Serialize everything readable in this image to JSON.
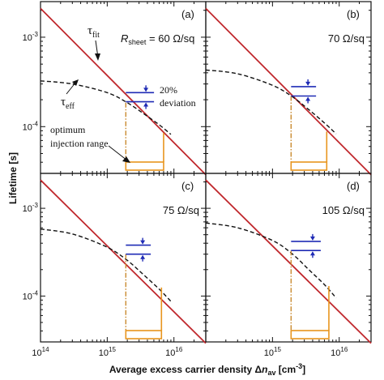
{
  "figure": {
    "xlabel_prefix": "Average excess carrier density ",
    "xlabel_delta": "Δ",
    "xlabel_n": "n",
    "xlabel_sub": "av",
    "xlabel_unit": " [cm",
    "xlabel_unit_exp": "-3",
    "xlabel_unit_close": "]",
    "ylabel": "Lifetime [s]"
  },
  "annotations": {
    "tau": "τ",
    "fit_sub": "fit",
    "eff_sub": "eff",
    "rsheet_r": "R",
    "rsheet_sub": "sheet",
    "deviation_line1": "20%",
    "deviation_line2": "deviation",
    "optimum_line1": "optimum",
    "optimum_line2": "injection range"
  },
  "colors": {
    "fit_line": "#c0282d",
    "eff_curve": "#111111",
    "marker_blue": "#1f2bb5",
    "range_orange": "#e8951e",
    "dashdot": "#c98a2e"
  },
  "chart_data": [
    {
      "type": "line",
      "panel_label": "(a)",
      "sheet_label": "= 60 Ω/sq",
      "x_scale": "log",
      "y_scale": "log",
      "xlim": [
        100000000000000.0,
        3e+16
      ],
      "ylim": [
        3e-05,
        0.0025
      ],
      "xticks": [
        "10^14",
        "10^15",
        "10^16"
      ],
      "yticks": [
        "10^-4",
        "10^-3"
      ],
      "series": [
        {
          "style": "solid-red",
          "x": [
            100000000000000.0,
            3e+16
          ],
          "y": [
            0.0021,
            2.9e-05
          ]
        },
        {
          "style": "dashed-black",
          "x": [
            100000000000000.0,
            300000000000000.0,
            1000000000000000.0,
            2000000000000000.0,
            3500000000000000.0,
            6000000000000000.0,
            9000000000000000.0
          ],
          "y": [
            0.000325,
            0.0003,
            0.00024,
            0.000185,
            0.00014,
            0.000105,
            8.2e-05
          ]
        }
      ],
      "blue_levels": [
        0.00024,
        0.00019
      ],
      "arrow_x": 3800000000000000.0,
      "range_x": [
        1900000000000000.0,
        7000000000000000.0
      ],
      "dashdot_top": 0.000185,
      "orange_right_top": 8.5e-05
    },
    {
      "type": "line",
      "panel_label": "(b)",
      "sheet_label": "70 Ω/sq",
      "x_scale": "log",
      "y_scale": "log",
      "xlim": [
        100000000000000.0,
        3e+16
      ],
      "ylim": [
        3e-05,
        0.0025
      ],
      "xticks": [
        "10^14",
        "10^15",
        "10^16"
      ],
      "yticks": [
        "10^-4",
        "10^-3"
      ],
      "series": [
        {
          "style": "solid-red",
          "x": [
            100000000000000.0,
            3e+16
          ],
          "y": [
            0.0021,
            2.9e-05
          ]
        },
        {
          "style": "dashed-black",
          "x": [
            100000000000000.0,
            300000000000000.0,
            1000000000000000.0,
            2000000000000000.0,
            3500000000000000.0,
            6000000000000000.0,
            9000000000000000.0
          ],
          "y": [
            0.00043,
            0.00039,
            0.00029,
            0.000215,
            0.000155,
            0.00011,
            8.3e-05
          ]
        }
      ],
      "blue_levels": [
        0.00028,
        0.00022
      ],
      "arrow_x": 3400000000000000.0,
      "range_x": [
        1900000000000000.0,
        6500000000000000.0
      ],
      "dashdot_top": 0.00022,
      "orange_right_top": 8.8e-05
    },
    {
      "type": "line",
      "panel_label": "(c)",
      "sheet_label": "75 Ω/sq",
      "x_scale": "log",
      "y_scale": "log",
      "xlim": [
        100000000000000.0,
        3e+16
      ],
      "ylim": [
        3e-05,
        0.0025
      ],
      "xticks": [
        "10^14",
        "10^15",
        "10^16"
      ],
      "yticks": [
        "10^-4",
        "10^-3"
      ],
      "series": [
        {
          "style": "solid-red",
          "x": [
            100000000000000.0,
            3e+16
          ],
          "y": [
            0.0021,
            2.9e-05
          ]
        },
        {
          "style": "dashed-black",
          "x": [
            100000000000000.0,
            300000000000000.0,
            1000000000000000.0,
            2000000000000000.0,
            3500000000000000.0,
            6000000000000000.0,
            9000000000000000.0
          ],
          "y": [
            0.00058,
            0.00051,
            0.00036,
            0.000255,
            0.000175,
            0.00012,
            8.7e-05
          ]
        }
      ],
      "blue_levels": [
        0.00038,
        0.0003
      ],
      "arrow_x": 3400000000000000.0,
      "range_x": [
        1900000000000000.0,
        6500000000000000.0
      ],
      "dashdot_top": 0.0003,
      "orange_right_top": 0.000125
    },
    {
      "type": "line",
      "panel_label": "(d)",
      "sheet_label": "105 Ω/sq",
      "x_scale": "log",
      "y_scale": "log",
      "xlim": [
        100000000000000.0,
        3e+16
      ],
      "ylim": [
        3e-05,
        0.0025
      ],
      "xticks": [
        "10^14",
        "10^15",
        "10^16"
      ],
      "yticks": [
        "10^-4",
        "10^-3"
      ],
      "series": [
        {
          "style": "solid-red",
          "x": [
            100000000000000.0,
            3e+16
          ],
          "y": [
            0.0021,
            2.9e-05
          ]
        },
        {
          "style": "dashed-black",
          "x": [
            100000000000000.0,
            300000000000000.0,
            1000000000000000.0,
            2000000000000000.0,
            3500000000000000.0,
            6000000000000000.0,
            9000000000000000.0
          ],
          "y": [
            0.00068,
            0.0006,
            0.00043,
            0.0003,
            0.0002,
            0.000135,
            9.5e-05
          ]
        }
      ],
      "blue_levels": [
        0.00042,
        0.00033
      ],
      "arrow_x": 4000000000000000.0,
      "range_x": [
        1900000000000000.0,
        7000000000000000.0
      ],
      "dashdot_top": 0.00033,
      "orange_right_top": 0.00013
    }
  ]
}
